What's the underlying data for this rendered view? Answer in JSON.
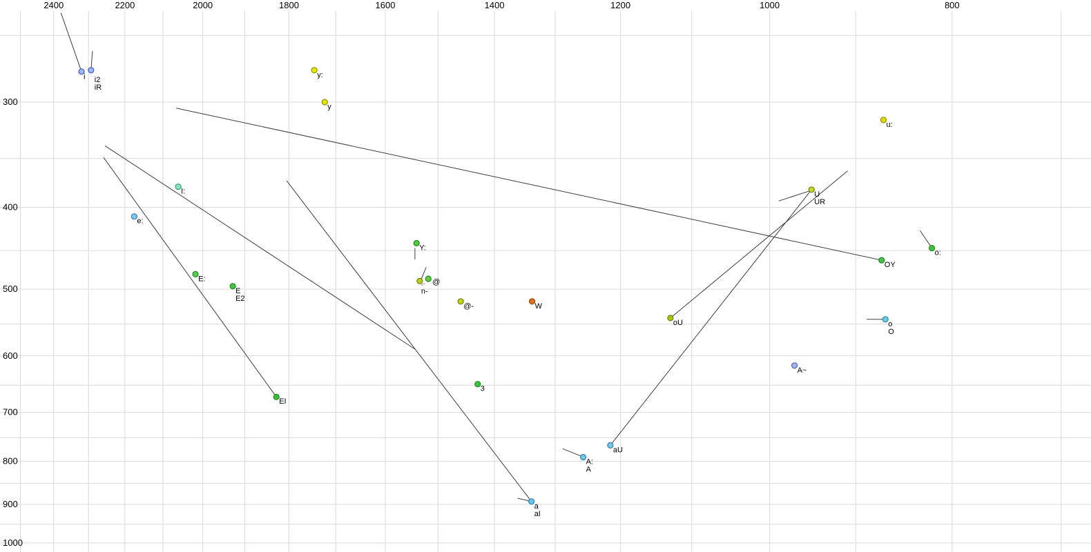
{
  "colors": {
    "background": "#ffffff",
    "grid": "#d9d9d9",
    "trajectory": "#3c3c3c",
    "text": "#000000"
  },
  "chart_data": {
    "type": "scatter",
    "x_axis": {
      "scale": "log",
      "reversed": true,
      "domain": [
        2563,
        675
      ],
      "ticks": [
        2400,
        2200,
        2000,
        1800,
        1600,
        1400,
        1200,
        1000,
        800
      ],
      "gridlines": [
        2500,
        2400,
        2300,
        2200,
        2100,
        2000,
        1900,
        1800,
        1700,
        1600,
        1500,
        1400,
        1300,
        1200,
        1100,
        1000,
        900,
        800,
        700
      ]
    },
    "y_axis": {
      "scale": "log",
      "inverted": true,
      "domain": [
        227,
        1025
      ],
      "ticks": [
        300,
        400,
        500,
        600,
        700,
        800,
        900,
        1000
      ],
      "gridlines": [
        250,
        300,
        350,
        400,
        450,
        500,
        550,
        600,
        650,
        700,
        750,
        800,
        850,
        900,
        950,
        1000
      ]
    },
    "points": [
      {
        "labels": [
          "i"
        ],
        "f2": 2320,
        "f1": 276,
        "fill": "#9fb6f2",
        "edge": "#3a5bd0",
        "label_offset": [
          3,
          11
        ]
      },
      {
        "labels": [
          "i2",
          "iR"
        ],
        "f2": 2293,
        "f1": 275,
        "fill": "#9fb6f2",
        "edge": "#3a5bd0",
        "label_offset": [
          5,
          17
        ]
      },
      {
        "labels": [
          "y:"
        ],
        "f2": 1745,
        "f1": 275,
        "fill": "#e6e600",
        "edge": "#8f8f00"
      },
      {
        "labels": [
          "y"
        ],
        "f2": 1723,
        "f1": 300,
        "fill": "#e6e600",
        "edge": "#8f8f00"
      },
      {
        "labels": [
          "u:"
        ],
        "f2": 870,
        "f1": 315,
        "fill": "#e0e000",
        "edge": "#8f8f00"
      },
      {
        "labels": [
          "I:"
        ],
        "f2": 2061,
        "f1": 378,
        "fill": "#8fe5c0",
        "edge": "#2aa56e"
      },
      {
        "labels": [
          "e:"
        ],
        "f2": 2175,
        "f1": 410,
        "fill": "#83c7ee",
        "edge": "#2f7fb5"
      },
      {
        "labels": [
          "U",
          "UR"
        ],
        "f2": 950,
        "f1": 381,
        "fill": "#c3da25",
        "edge": "#6e7d12"
      },
      {
        "labels": [
          "Y:"
        ],
        "f2": 1540,
        "f1": 441,
        "fill": "#57cc42",
        "edge": "#1f8a1f"
      },
      {
        "labels": [
          "o:"
        ],
        "f2": 820,
        "f1": 447,
        "fill": "#46c046",
        "edge": "#1f8a1f"
      },
      {
        "labels": [
          "OY"
        ],
        "f2": 872,
        "f1": 462,
        "fill": "#46c046",
        "edge": "#1f8a1f"
      },
      {
        "labels": [
          "E:"
        ],
        "f2": 2018,
        "f1": 480,
        "fill": "#57cc57",
        "edge": "#1f8a1f"
      },
      {
        "labels": [
          "E",
          "E2"
        ],
        "f2": 1928,
        "f1": 496,
        "fill": "#46c046",
        "edge": "#1f8a1f"
      },
      {
        "labels": [
          "@"
        ],
        "f2": 1518,
        "f1": 486,
        "fill": "#63cc3f",
        "edge": "#1f8a1f",
        "label_offset": [
          6,
          8
        ]
      },
      {
        "labels": [
          "i-",
          "n-"
        ],
        "f2": 1534,
        "f1": 489,
        "fill": "#b5d40e",
        "edge": "#6e7d12",
        "label_offset": [
          2,
          7
        ],
        "label_colors": [
          "#8a8a8a",
          "#000000"
        ]
      },
      {
        "labels": [
          "@-"
        ],
        "f2": 1459,
        "f1": 517,
        "fill": "#c2d40e",
        "edge": "#6e7d12"
      },
      {
        "labels": [
          "W"
        ],
        "f2": 1337,
        "f1": 517,
        "fill": "#e3711f",
        "edge": "#9a4400"
      },
      {
        "labels": [
          "oU"
        ],
        "f2": 1129,
        "f1": 541,
        "fill": "#aec40a",
        "edge": "#6e7d12"
      },
      {
        "labels": [
          "o",
          "O"
        ],
        "f2": 868,
        "f1": 543,
        "fill": "#66ccdd",
        "edge": "#2a8aa5"
      },
      {
        "labels": [
          "A~"
        ],
        "f2": 970,
        "f1": 616,
        "fill": "#a3b2ee",
        "edge": "#4d5ec9"
      },
      {
        "labels": [
          "3"
        ],
        "f2": 1429,
        "f1": 648,
        "fill": "#3fc43f",
        "edge": "#1f8a1f"
      },
      {
        "labels": [
          "EI"
        ],
        "f2": 1828,
        "f1": 671,
        "fill": "#3fba3f",
        "edge": "#1f8a1f"
      },
      {
        "labels": [
          "aU"
        ],
        "f2": 1215,
        "f1": 766,
        "fill": "#7fc6e2",
        "edge": "#2f7fb5"
      },
      {
        "labels": [
          "A:",
          "A"
        ],
        "f2": 1256,
        "f1": 791,
        "fill": "#73c9e2",
        "edge": "#2f7fb5"
      },
      {
        "labels": [
          "a",
          "aI"
        ],
        "f2": 1338,
        "f1": 893,
        "fill": "#66c4e6",
        "edge": "#2f7fb5"
      }
    ],
    "trajectories": [
      {
        "f2a": 2379,
        "f1a": 235,
        "f2b": 2320,
        "f1b": 276
      },
      {
        "f2a": 2289,
        "f1a": 261,
        "f2b": 2293,
        "f1b": 275
      },
      {
        "f2a": 2066,
        "f1a": 305,
        "f2b": 872,
        "f1b": 462
      },
      {
        "f2a": 2254,
        "f1a": 338,
        "f2b": 1543,
        "f1b": 589
      },
      {
        "f2a": 2258,
        "f1a": 349,
        "f2b": 1828,
        "f1b": 671
      },
      {
        "f2a": 1805,
        "f1a": 372,
        "f2b": 1338,
        "f1b": 893
      },
      {
        "f2a": 1129,
        "f1a": 541,
        "f2b": 909,
        "f1b": 362
      },
      {
        "f2a": 1215,
        "f1a": 766,
        "f2b": 950,
        "f1b": 381
      },
      {
        "f2a": 989,
        "f1a": 393,
        "f2b": 951,
        "f1b": 382
      },
      {
        "f2a": 832,
        "f1a": 426,
        "f2b": 820,
        "f1b": 447
      },
      {
        "f2a": 888,
        "f1a": 543,
        "f2b": 868,
        "f1b": 543
      },
      {
        "f2a": 1288,
        "f1a": 773,
        "f2b": 1257,
        "f1b": 790
      },
      {
        "f2a": 1361,
        "f1a": 885,
        "f2b": 1340,
        "f1b": 892
      },
      {
        "f2a": 1543,
        "f1a": 447,
        "f2b": 1543,
        "f1b": 461
      },
      {
        "f2a": 1522,
        "f1a": 471,
        "f2b": 1532,
        "f1b": 488
      }
    ]
  }
}
